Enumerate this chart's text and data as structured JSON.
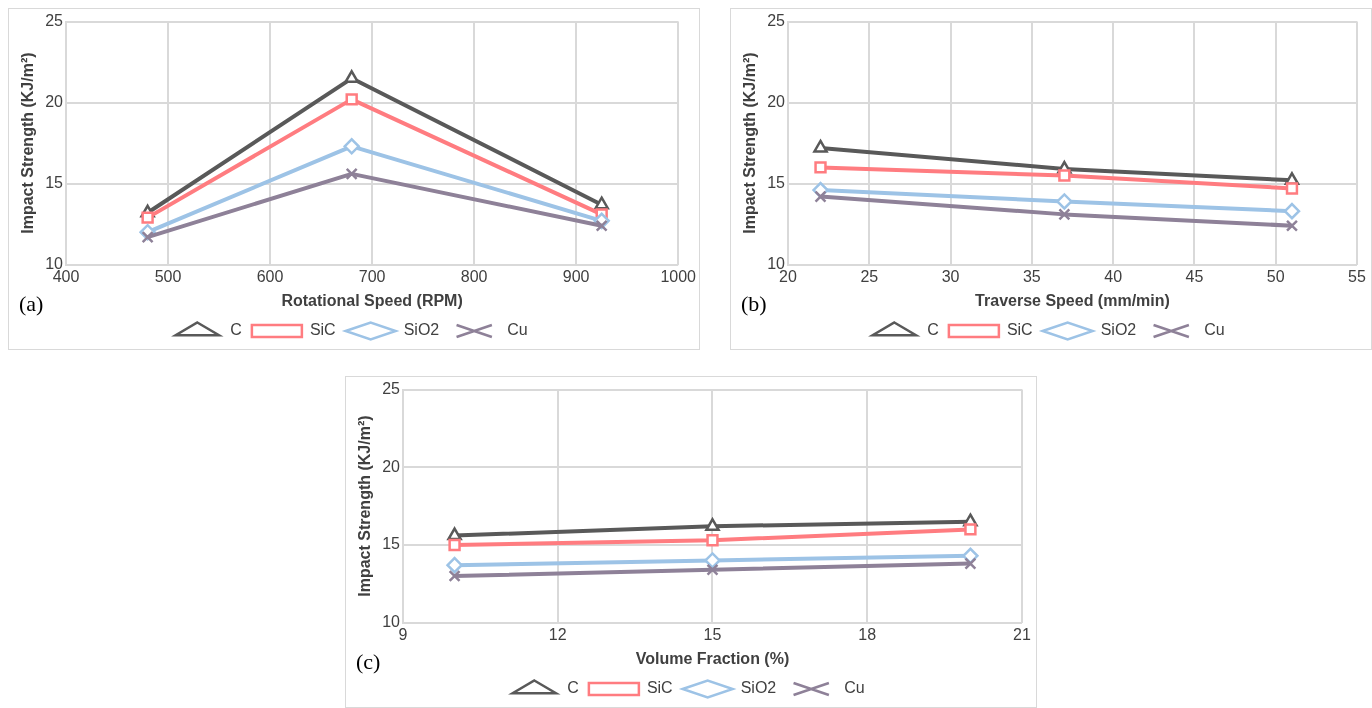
{
  "chart_data": [
    {
      "type": "line",
      "xlabel": "Rotational Speed (RPM)",
      "ylabel": "Impact Strength (KJ/m²)",
      "annotations": [
        "(a)"
      ],
      "x": [
        480,
        680,
        925
      ],
      "xlim": [
        400,
        1000
      ],
      "xticks": [
        400,
        500,
        600,
        700,
        800,
        900,
        1000
      ],
      "ylim": [
        10,
        25
      ],
      "yticks": [
        10,
        15,
        20,
        25
      ],
      "grid": true,
      "legend": "bottom",
      "series": [
        {
          "name": "C",
          "color": "#595959",
          "marker": "triangle",
          "values": [
            13.2,
            21.5,
            13.7
          ]
        },
        {
          "name": "SiC",
          "color": "#ff7c80",
          "marker": "square",
          "values": [
            12.9,
            20.2,
            13.1
          ]
        },
        {
          "name": "SiO2",
          "color": "#9dc3e6",
          "marker": "diamond",
          "values": [
            12.0,
            17.3,
            12.7
          ]
        },
        {
          "name": "Cu",
          "color": "#8e8198",
          "marker": "cross",
          "values": [
            11.7,
            15.6,
            12.4
          ]
        }
      ]
    },
    {
      "type": "line",
      "xlabel": "Traverse Speed (mm/min)",
      "ylabel": "Impact Strength (KJ/m²)",
      "annotations": [
        "(b)"
      ],
      "x": [
        22,
        37,
        51
      ],
      "xlim": [
        20,
        55
      ],
      "xticks": [
        20,
        25,
        30,
        35,
        40,
        45,
        50,
        55
      ],
      "ylim": [
        10,
        25
      ],
      "yticks": [
        10,
        15,
        20,
        25
      ],
      "grid": true,
      "legend": "bottom",
      "series": [
        {
          "name": "C",
          "color": "#595959",
          "marker": "triangle",
          "values": [
            17.2,
            15.9,
            15.2
          ]
        },
        {
          "name": "SiC",
          "color": "#ff7c80",
          "marker": "square",
          "values": [
            16.0,
            15.5,
            14.7
          ]
        },
        {
          "name": "SiO2",
          "color": "#9dc3e6",
          "marker": "diamond",
          "values": [
            14.6,
            13.9,
            13.3
          ]
        },
        {
          "name": "Cu",
          "color": "#8e8198",
          "marker": "cross",
          "values": [
            14.2,
            13.1,
            12.4
          ]
        }
      ]
    },
    {
      "type": "line",
      "xlabel": "Volume Fraction (%)",
      "ylabel": "Impact Strength (KJ/m²)",
      "annotations": [
        "(c)"
      ],
      "x": [
        10,
        15,
        20
      ],
      "xlim": [
        9,
        21
      ],
      "xticks": [
        9,
        12,
        15,
        18,
        21
      ],
      "ylim": [
        10,
        25
      ],
      "yticks": [
        10,
        15,
        20,
        25
      ],
      "grid": true,
      "legend": "bottom",
      "series": [
        {
          "name": "C",
          "color": "#595959",
          "marker": "triangle",
          "values": [
            15.6,
            16.2,
            16.5
          ]
        },
        {
          "name": "SiC",
          "color": "#ff7c80",
          "marker": "square",
          "values": [
            15.0,
            15.3,
            16.0
          ]
        },
        {
          "name": "SiO2",
          "color": "#9dc3e6",
          "marker": "diamond",
          "values": [
            13.7,
            14.0,
            14.3
          ]
        },
        {
          "name": "Cu",
          "color": "#8e8198",
          "marker": "cross",
          "values": [
            13.0,
            13.4,
            13.8
          ]
        }
      ]
    }
  ]
}
